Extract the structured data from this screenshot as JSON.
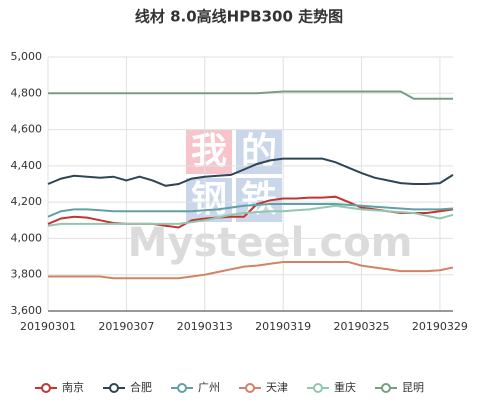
{
  "chart_data": {
    "type": "line",
    "title": "线材 8.0高线HPB300 走势图",
    "watermark": {
      "logo": [
        "我",
        "的",
        "钢",
        "铁"
      ],
      "text": "Mysteel.com"
    },
    "categories": [
      "20190301",
      null,
      null,
      null,
      null,
      null,
      "20190307",
      null,
      null,
      null,
      null,
      null,
      "20190313",
      null,
      null,
      null,
      null,
      null,
      "20190319",
      null,
      null,
      null,
      null,
      null,
      "20190325",
      null,
      null,
      null,
      null,
      null,
      "20190329",
      null
    ],
    "ylim": [
      3600,
      5000
    ],
    "yticks": [
      {
        "value": 3600,
        "label": "3,600"
      },
      {
        "value": 3800,
        "label": "3,800"
      },
      {
        "value": 4000,
        "label": "4,000"
      },
      {
        "value": 4200,
        "label": "4,200"
      },
      {
        "value": 4400,
        "label": "4,400"
      },
      {
        "value": 4600,
        "label": "4,600"
      },
      {
        "value": 4800,
        "label": "4,800"
      },
      {
        "value": 5000,
        "label": "5,000"
      }
    ],
    "grid": true,
    "legend": "bottom",
    "series": [
      {
        "name": "南京",
        "color": "#c23531",
        "values": [
          4080,
          4110,
          4120,
          4115,
          4100,
          4085,
          4080,
          4080,
          4080,
          4070,
          4060,
          4100,
          4110,
          4115,
          4120,
          4120,
          4190,
          4210,
          4220,
          4220,
          4225,
          4225,
          4230,
          4200,
          4170,
          4160,
          4150,
          4140,
          4140,
          4140,
          4150,
          4160
        ]
      },
      {
        "name": "合肥",
        "color": "#2f4554",
        "values": [
          4300,
          4330,
          4345,
          4340,
          4335,
          4340,
          4320,
          4340,
          4320,
          4290,
          4300,
          4330,
          4340,
          4345,
          4350,
          4380,
          4410,
          4430,
          4440,
          4440,
          4440,
          4440,
          4420,
          4390,
          4360,
          4335,
          4320,
          4305,
          4300,
          4300,
          4305,
          4350
        ]
      },
      {
        "name": "广州",
        "color": "#61a0a8",
        "values": [
          4120,
          4150,
          4160,
          4160,
          4155,
          4150,
          4150,
          4150,
          4150,
          4150,
          4150,
          4150,
          4155,
          4160,
          4170,
          4180,
          4185,
          4190,
          4190,
          4190,
          4190,
          4190,
          4190,
          4185,
          4180,
          4175,
          4170,
          4165,
          4160,
          4160,
          4160,
          4165
        ]
      },
      {
        "name": "天津",
        "color": "#d48265",
        "values": [
          3790,
          3790,
          3790,
          3790,
          3790,
          3780,
          3780,
          3780,
          3780,
          3780,
          3780,
          3790,
          3800,
          3815,
          3830,
          3845,
          3850,
          3860,
          3870,
          3870,
          3870,
          3870,
          3870,
          3870,
          3850,
          3840,
          3830,
          3820,
          3820,
          3820,
          3825,
          3840
        ]
      },
      {
        "name": "重庆",
        "color": "#91c7ae",
        "values": [
          4070,
          4080,
          4080,
          4080,
          4080,
          4080,
          4080,
          4080,
          4080,
          4080,
          4080,
          4090,
          4100,
          4115,
          4130,
          4140,
          4145,
          4150,
          4150,
          4155,
          4160,
          4170,
          4180,
          4170,
          4160,
          4155,
          4150,
          4145,
          4140,
          4125,
          4110,
          4130
        ]
      },
      {
        "name": "昆明",
        "color": "#749f83",
        "values": [
          4800,
          4800,
          4800,
          4800,
          4800,
          4800,
          4800,
          4800,
          4800,
          4800,
          4800,
          4800,
          4800,
          4800,
          4800,
          4800,
          4800,
          4805,
          4810,
          4810,
          4810,
          4810,
          4810,
          4810,
          4810,
          4810,
          4810,
          4810,
          4770,
          4770,
          4770,
          4770
        ]
      }
    ]
  }
}
